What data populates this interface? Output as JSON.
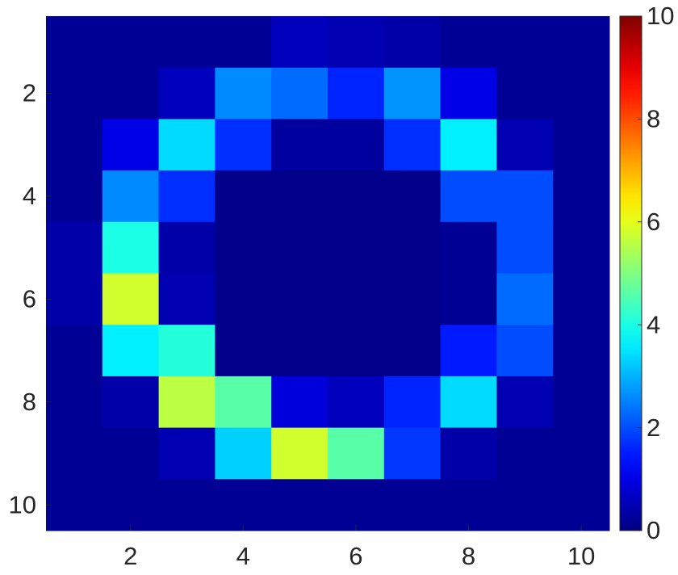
{
  "chart_data": {
    "type": "heatmap",
    "x": [
      1,
      2,
      3,
      4,
      5,
      6,
      7,
      8,
      9,
      10
    ],
    "y": [
      1,
      2,
      3,
      4,
      5,
      6,
      7,
      8,
      9,
      10
    ],
    "z": [
      [
        0.2,
        0.2,
        0.2,
        0.2,
        0.6,
        0.5,
        0.4,
        0.2,
        0.2,
        0.2
      ],
      [
        0.2,
        0.2,
        0.6,
        2.6,
        2.3,
        1.6,
        2.7,
        1.0,
        0.2,
        0.2
      ],
      [
        0.2,
        1.0,
        3.4,
        1.7,
        0.3,
        0.3,
        1.7,
        3.6,
        0.5,
        0.2
      ],
      [
        0.2,
        2.6,
        1.7,
        0.1,
        0.1,
        0.1,
        0.1,
        2.0,
        2.0,
        0.2
      ],
      [
        0.4,
        4.0,
        0.4,
        0.1,
        0.1,
        0.1,
        0.1,
        0.2,
        2.0,
        0.2
      ],
      [
        0.4,
        5.8,
        0.5,
        0.1,
        0.1,
        0.1,
        0.1,
        0.2,
        2.3,
        0.2
      ],
      [
        0.2,
        3.6,
        4.1,
        0.1,
        0.1,
        0.1,
        0.1,
        1.5,
        2.0,
        0.2
      ],
      [
        0.2,
        0.4,
        5.6,
        4.6,
        0.9,
        0.6,
        1.6,
        3.4,
        0.5,
        0.2
      ],
      [
        0.2,
        0.2,
        0.5,
        3.3,
        5.8,
        4.6,
        1.8,
        0.4,
        0.2,
        0.2
      ],
      [
        0.2,
        0.2,
        0.2,
        0.2,
        0.2,
        0.2,
        0.2,
        0.2,
        0.2,
        0.2
      ]
    ],
    "xlim": [
      0.5,
      10.5
    ],
    "xticks": [
      2,
      4,
      6,
      8,
      10
    ],
    "ylim": [
      0.5,
      10.5
    ],
    "yticks": [
      2,
      4,
      6,
      8,
      10
    ],
    "y_reversed": true,
    "colormap": "jet",
    "clim": [
      0,
      10
    ],
    "cticks": [
      0,
      2,
      4,
      6,
      8,
      10
    ]
  }
}
